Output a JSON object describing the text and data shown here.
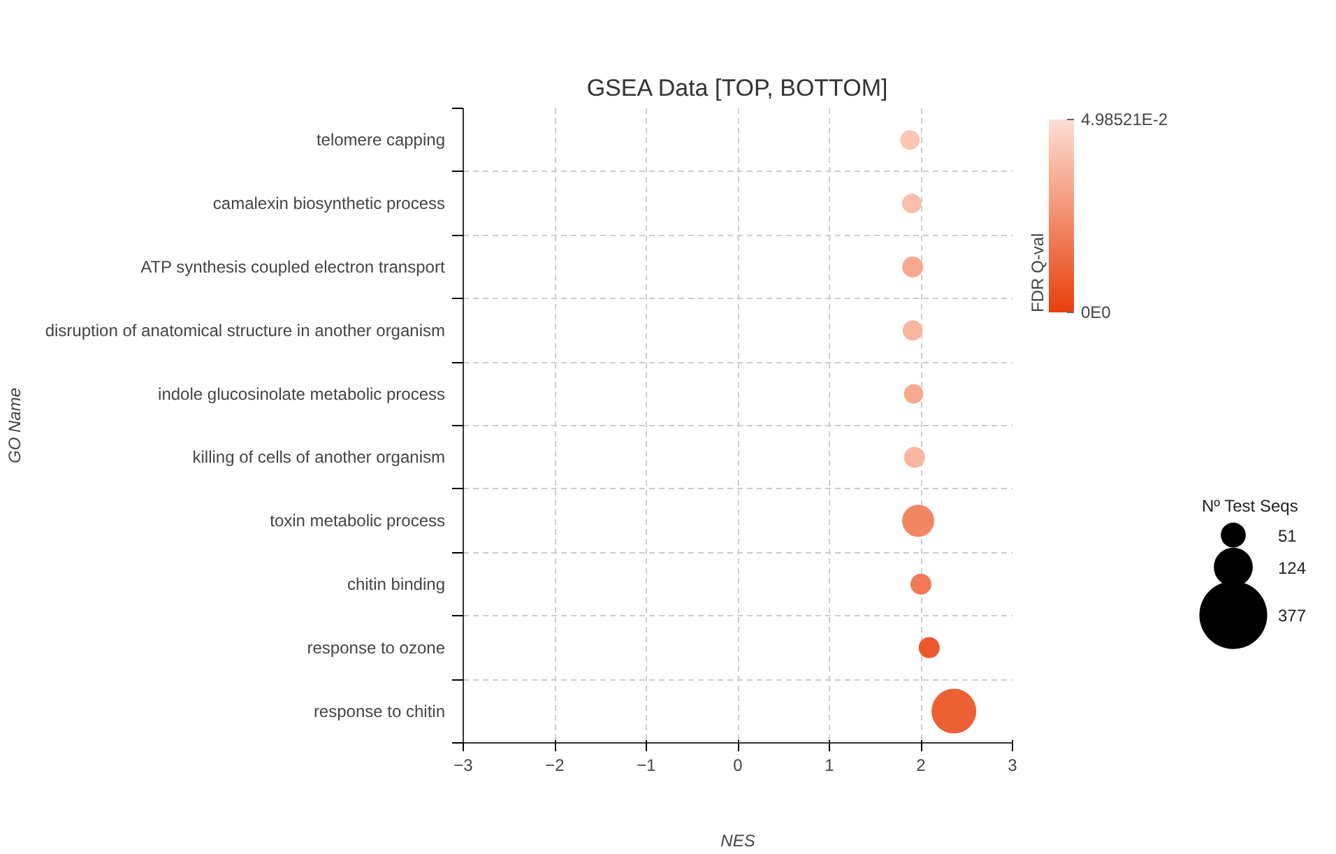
{
  "chart_data": {
    "type": "bubble",
    "title": "GSEA Data [TOP, BOTTOM]",
    "xlabel": "NES",
    "ylabel": "GO Name",
    "clabel": "FDR Q-val",
    "legend_title": "Nº Test Seqs",
    "orientation": "horizontal",
    "categories": [
      "telomere capping",
      "camalexin biosynthetic process",
      "ATP synthesis coupled electron transport",
      "disruption of anatomical structure in another organism",
      "indole glucosinolate metabolic process",
      "killing of cells of another organism",
      "toxin metabolic process",
      "chitin binding",
      "response to ozone",
      "response to chitin"
    ],
    "values": [
      1.88,
      1.9,
      1.91,
      1.91,
      1.92,
      1.93,
      1.97,
      2.0,
      2.09,
      2.36
    ],
    "sizes": [
      31,
      31,
      36,
      33,
      31,
      36,
      85,
      36,
      36,
      164
    ],
    "cvalues": [
      0.042,
      0.04,
      0.033,
      0.037,
      0.033,
      0.037,
      0.022,
      0.018,
      0.008,
      0.01
    ],
    "size_legend": [
      51,
      124,
      377
    ],
    "clim": [
      0,
      0.0498521
    ],
    "cticks": [
      {
        "value": 0,
        "label": "0E0"
      },
      {
        "value": 0.0498521,
        "label": "4.98521E-2"
      }
    ],
    "xlim": [
      -3,
      3
    ],
    "xticks": [
      -3,
      -2,
      -1,
      0,
      1,
      2,
      3
    ],
    "grid": true
  }
}
